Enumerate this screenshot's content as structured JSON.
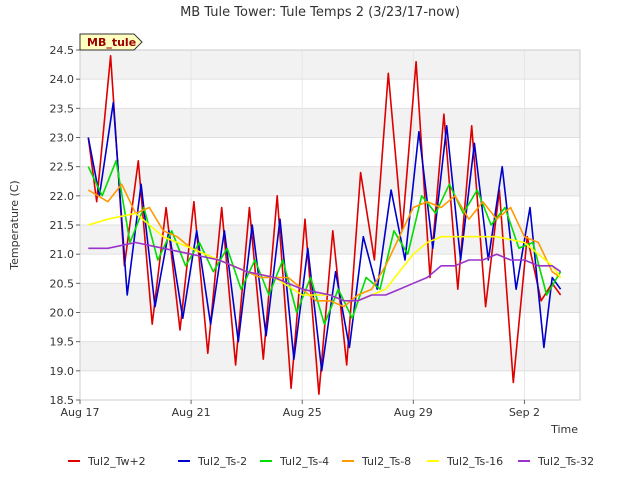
{
  "chart_data": {
    "type": "line",
    "title": "MB Tule Tower: Tule Temps 2 (3/23/17-now)",
    "xlabel": "Time",
    "ylabel": "Temperature (C)",
    "site_label": "MB_tule",
    "xlim": [
      0,
      18
    ],
    "ylim": [
      18.5,
      24.5
    ],
    "x_ticks": [
      {
        "value": 0,
        "label": "Aug 17"
      },
      {
        "value": 4,
        "label": "Aug 21"
      },
      {
        "value": 8,
        "label": "Aug 25"
      },
      {
        "value": 12,
        "label": "Aug 29"
      },
      {
        "value": 16,
        "label": "Sep 2"
      }
    ],
    "y_ticks": [
      18.5,
      19.0,
      19.5,
      20.0,
      20.5,
      21.0,
      21.5,
      22.0,
      22.5,
      23.0,
      23.5,
      24.0,
      24.5
    ],
    "y_tick_labels": [
      "18.5",
      "19.0",
      "19.5",
      "20.0",
      "20.5",
      "21.0",
      "21.5",
      "22.0",
      "22.5",
      "23.0",
      "23.5",
      "24.0",
      "24.5"
    ],
    "series": [
      {
        "name": "Tul2_Tw+2",
        "color": "#dd0000",
        "x": [
          0.3,
          0.6,
          1.1,
          1.6,
          2.1,
          2.6,
          3.1,
          3.6,
          4.1,
          4.6,
          5.1,
          5.6,
          6.1,
          6.6,
          7.1,
          7.6,
          8.1,
          8.6,
          9.1,
          9.6,
          10.1,
          10.6,
          11.1,
          11.6,
          12.1,
          12.6,
          13.1,
          13.6,
          14.1,
          14.6,
          15.1,
          15.6,
          16.1,
          16.6,
          17.0,
          17.3
        ],
        "y": [
          23.0,
          21.9,
          24.4,
          20.8,
          22.6,
          19.8,
          21.8,
          19.7,
          21.9,
          19.3,
          21.8,
          19.1,
          21.8,
          19.2,
          22.0,
          18.7,
          21.6,
          18.6,
          21.4,
          19.1,
          22.4,
          20.9,
          24.1,
          21.4,
          24.3,
          20.6,
          23.4,
          20.4,
          23.2,
          20.1,
          22.1,
          18.8,
          21.3,
          20.2,
          20.5,
          20.3
        ]
      },
      {
        "name": "Tul2_Ts-2",
        "color": "#0000cc",
        "x": [
          0.3,
          0.7,
          1.2,
          1.7,
          2.2,
          2.7,
          3.2,
          3.7,
          4.2,
          4.7,
          5.2,
          5.7,
          6.2,
          6.7,
          7.2,
          7.7,
          8.2,
          8.7,
          9.2,
          9.7,
          10.2,
          10.7,
          11.2,
          11.7,
          12.2,
          12.7,
          13.2,
          13.7,
          14.2,
          14.7,
          15.2,
          15.7,
          16.2,
          16.7,
          17.0,
          17.3
        ],
        "y": [
          23.0,
          22.0,
          23.6,
          20.3,
          22.2,
          20.1,
          21.4,
          19.9,
          21.4,
          19.8,
          21.4,
          19.5,
          21.5,
          19.6,
          21.6,
          19.2,
          21.1,
          19.0,
          20.7,
          19.4,
          21.3,
          20.4,
          22.1,
          20.9,
          23.1,
          21.1,
          23.2,
          20.9,
          22.9,
          20.9,
          22.5,
          20.4,
          21.8,
          19.4,
          20.6,
          20.4
        ]
      },
      {
        "name": "Tul2_Ts-4",
        "color": "#00dd00",
        "x": [
          0.3,
          0.8,
          1.3,
          1.8,
          2.3,
          2.8,
          3.3,
          3.8,
          4.3,
          4.8,
          5.3,
          5.8,
          6.3,
          6.8,
          7.3,
          7.8,
          8.3,
          8.8,
          9.3,
          9.8,
          10.3,
          10.8,
          11.3,
          11.8,
          12.3,
          12.8,
          13.3,
          13.8,
          14.3,
          14.8,
          15.3,
          15.8,
          16.3,
          16.8,
          17.3
        ],
        "y": [
          22.5,
          22.0,
          22.6,
          21.2,
          21.8,
          20.9,
          21.4,
          20.8,
          21.2,
          20.7,
          21.1,
          20.4,
          20.9,
          20.3,
          20.9,
          20.0,
          20.6,
          19.8,
          20.4,
          19.9,
          20.6,
          20.4,
          21.4,
          21.0,
          22.0,
          21.7,
          22.2,
          21.7,
          22.1,
          21.5,
          21.8,
          21.1,
          21.2,
          20.3,
          20.7
        ]
      },
      {
        "name": "Tul2_Ts-8",
        "color": "#ff9900",
        "x": [
          0.3,
          1.0,
          1.5,
          2.0,
          2.5,
          3.0,
          3.5,
          4.0,
          4.5,
          5.0,
          5.5,
          6.0,
          6.5,
          7.0,
          7.5,
          8.0,
          8.5,
          9.0,
          9.5,
          10.0,
          10.5,
          11.0,
          11.5,
          12.0,
          12.5,
          13.0,
          13.5,
          14.0,
          14.5,
          15.0,
          15.5,
          16.0,
          16.5,
          17.0,
          17.3
        ],
        "y": [
          22.1,
          21.9,
          22.2,
          21.7,
          21.8,
          21.4,
          21.3,
          21.1,
          21.0,
          20.9,
          20.8,
          20.7,
          20.6,
          20.6,
          20.6,
          20.4,
          20.2,
          20.2,
          20.1,
          20.3,
          20.4,
          20.8,
          21.3,
          21.8,
          21.9,
          21.8,
          22.0,
          21.6,
          21.9,
          21.6,
          21.8,
          21.3,
          21.2,
          20.7,
          20.6
        ]
      },
      {
        "name": "Tul2_Ts-16",
        "color": "#ffff00",
        "x": [
          0.3,
          1.0,
          2.0,
          2.5,
          3.0,
          4.0,
          5.0,
          6.0,
          7.0,
          8.0,
          8.5,
          9.0,
          9.5,
          10.0,
          10.5,
          11.0,
          11.5,
          12.0,
          12.5,
          13.0,
          13.5,
          14.0,
          15.0,
          16.0,
          16.5,
          17.0,
          17.3
        ],
        "y": [
          21.5,
          21.6,
          21.7,
          21.5,
          21.3,
          21.1,
          20.9,
          20.7,
          20.6,
          20.3,
          20.3,
          20.3,
          20.2,
          20.2,
          20.3,
          20.4,
          20.7,
          21.0,
          21.2,
          21.3,
          21.3,
          21.3,
          21.3,
          21.2,
          21.0,
          20.8,
          20.6
        ]
      },
      {
        "name": "Tul2_Ts-32",
        "color": "#9933cc",
        "x": [
          0.3,
          1.0,
          2.0,
          3.0,
          4.0,
          5.0,
          6.0,
          7.0,
          8.0,
          9.0,
          9.5,
          10.0,
          10.5,
          11.0,
          11.5,
          12.0,
          12.5,
          13.0,
          13.5,
          14.0,
          14.5,
          15.0,
          15.5,
          16.0,
          16.5,
          17.0,
          17.3
        ],
        "y": [
          21.1,
          21.1,
          21.2,
          21.1,
          21.0,
          20.9,
          20.7,
          20.6,
          20.4,
          20.3,
          20.2,
          20.2,
          20.3,
          20.3,
          20.4,
          20.5,
          20.6,
          20.8,
          20.8,
          20.9,
          20.9,
          21.0,
          20.9,
          20.9,
          20.8,
          20.8,
          20.7
        ]
      }
    ]
  }
}
